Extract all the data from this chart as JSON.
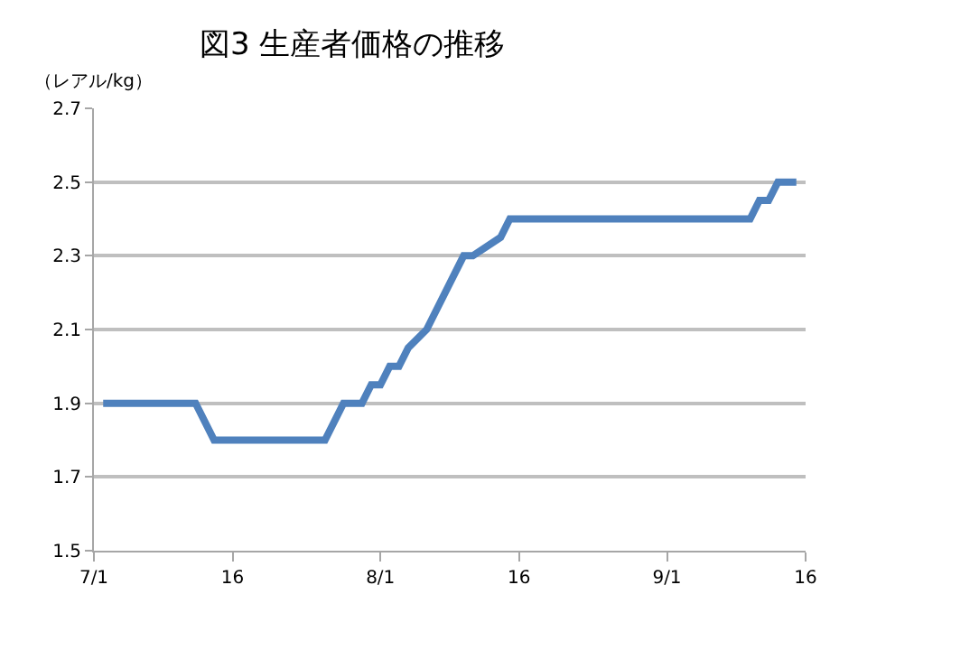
{
  "chart_data": {
    "type": "line",
    "title": "図3 生産者価格の推移",
    "ylabel": "（レアル/kg）",
    "x": [
      "--07-02",
      "--07-12",
      "--07-14",
      "--07-26",
      "--07-28",
      "--07-30",
      "--07-31",
      "--08-01",
      "--08-02",
      "--08-03",
      "--08-04",
      "--08-06",
      "--08-10",
      "--08-11",
      "--08-14",
      "--08-15",
      "--09-10",
      "--09-11",
      "--09-12",
      "--09-13",
      "--09-15"
    ],
    "series": [
      {
        "color": "#4f81bd",
        "values": [
          1.9,
          1.9,
          1.8,
          1.8,
          1.9,
          1.9,
          1.95,
          1.95,
          2.0,
          2.0,
          2.05,
          2.1,
          2.3,
          2.3,
          2.35,
          2.4,
          2.4,
          2.45,
          2.45,
          2.5,
          2.5
        ]
      }
    ],
    "xlim": [
      "--07-01",
      "--09-16"
    ],
    "xticks": [
      {
        "value": "--07-01",
        "label": "7/1"
      },
      {
        "value": "--07-16",
        "label": "16"
      },
      {
        "value": "--08-01",
        "label": "8/1"
      },
      {
        "value": "--08-16",
        "label": "16"
      },
      {
        "value": "--09-01",
        "label": "9/1"
      },
      {
        "value": "--09-16",
        "label": "16"
      }
    ],
    "ylim": [
      1.5,
      2.7
    ],
    "yticks": [
      1.5,
      1.7,
      1.9,
      2.1,
      2.3,
      2.5,
      2.7
    ],
    "grid": "y",
    "legend": false,
    "marker": "none",
    "line_style": "solid"
  }
}
